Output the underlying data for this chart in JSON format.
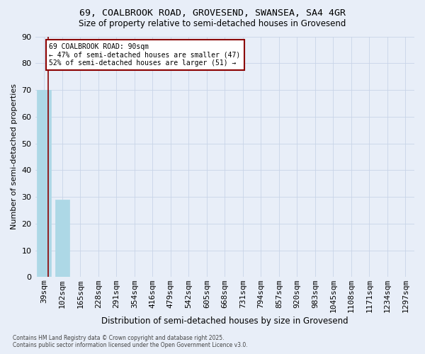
{
  "title1": "69, COALBROOK ROAD, GROVESEND, SWANSEA, SA4 4GR",
  "title2": "Size of property relative to semi-detached houses in Grovesend",
  "xlabel": "Distribution of semi-detached houses by size in Grovesend",
  "ylabel": "Number of semi-detached properties",
  "categories": [
    "39sqm",
    "102sqm",
    "165sqm",
    "228sqm",
    "291sqm",
    "354sqm",
    "416sqm",
    "479sqm",
    "542sqm",
    "605sqm",
    "668sqm",
    "731sqm",
    "794sqm",
    "857sqm",
    "920sqm",
    "983sqm",
    "1045sqm",
    "1108sqm",
    "1171sqm",
    "1234sqm",
    "1297sqm"
  ],
  "values": [
    70,
    29,
    0,
    0,
    0,
    0,
    0,
    0,
    0,
    0,
    0,
    0,
    0,
    0,
    0,
    0,
    0,
    0,
    0,
    0,
    0
  ],
  "bar_color": "#add8e6",
  "bar_edge_color": "#add8e6",
  "grid_color": "#c8d4e8",
  "bg_color": "#e8eef8",
  "property_line_color": "#8b0000",
  "property_line_x": 0.22,
  "annotation_title": "69 COALBROOK ROAD: 90sqm",
  "annotation_line1": "← 47% of semi-detached houses are smaller (47)",
  "annotation_line2": "52% of semi-detached houses are larger (51) →",
  "annotation_box_color": "#ffffff",
  "annotation_edge_color": "#8b0000",
  "footer1": "Contains HM Land Registry data © Crown copyright and database right 2025.",
  "footer2": "Contains public sector information licensed under the Open Government Licence v3.0.",
  "ylim": [
    0,
    90
  ],
  "yticks": [
    0,
    10,
    20,
    30,
    40,
    50,
    60,
    70,
    80,
    90
  ]
}
